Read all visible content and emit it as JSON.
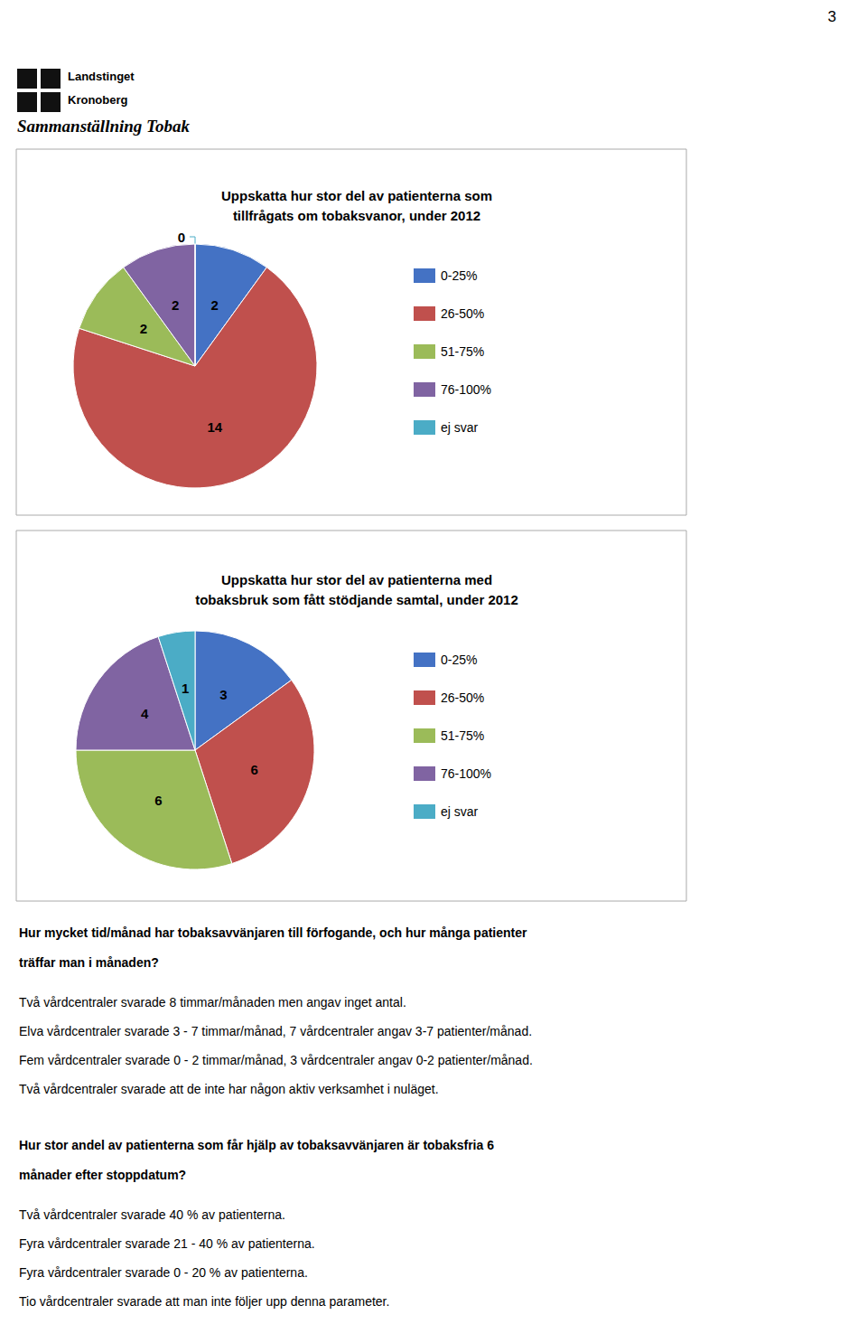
{
  "annotations": [
    "3",
    "Landstinget",
    "Kronoberg",
    "Sammanställning Tobak",
    "Hur mycket tid/månad har tobaksavvänjaren till förfogande, och hur många patienter",
    "träffar man i månaden?",
    "Två vårdcentraler svarade 8 timmar/månaden men angav inget antal.",
    "Elva vårdcentraler svarade 3 - 7 timmar/månad, 7 vårdcentraler angav 3-7 patienter/månad.",
    "Fem vårdcentraler svarade 0 - 2 timmar/månad, 3 vårdcentraler angav 0-2 patienter/månad.",
    "Två vårdcentraler svarade att de inte har någon aktiv verksamhet i nuläget.",
    "Hur stor andel av patienterna som får hjälp av tobaksavvänjaren är tobaksfria 6",
    "månader efter stoppdatum?",
    "Två vårdcentraler svarade 40 % av patienterna.",
    "Fyra vårdcentraler svarade 21 - 40 % av patienterna.",
    "Fyra vårdcentraler svarade 0 - 20 % av patienterna.",
    "Tio vårdcentraler svarade att man inte följer upp denna parameter."
  ],
  "chart_data": [
    {
      "type": "pie",
      "title": "Uppskatta hur stor del av patienterna som\ntillfrågats om tobaksvanor, under 2012",
      "categories": [
        "0-25%",
        "26-50%",
        "51-75%",
        "76-100%",
        "ej svar"
      ],
      "values": [
        2,
        14,
        2,
        2,
        0
      ],
      "colors": [
        "#4472C4",
        "#C0504D",
        "#9BBB59",
        "#8064A2",
        "#4BACC6"
      ],
      "data_labels": true,
      "legend": "right"
    },
    {
      "type": "pie",
      "title": "Uppskatta hur stor del av patienterna med\ntobaksbruk som fått stödjande samtal, under 2012",
      "categories": [
        "0-25%",
        "26-50%",
        "51-75%",
        "76-100%",
        "ej svar"
      ],
      "values": [
        3,
        6,
        6,
        4,
        1
      ],
      "colors": [
        "#4472C4",
        "#C0504D",
        "#9BBB59",
        "#8064A2",
        "#4BACC6"
      ],
      "data_labels": true,
      "legend": "right"
    }
  ]
}
